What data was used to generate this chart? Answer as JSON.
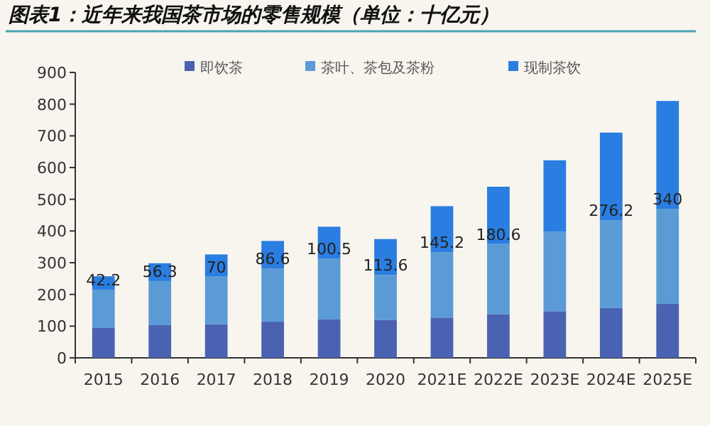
{
  "chart_data": {
    "type": "bar",
    "stacked": true,
    "title": "图表1：近年来我国茶市场的零售规模（单位：十亿元）",
    "categories": [
      "2015",
      "2016",
      "2017",
      "2018",
      "2019",
      "2020",
      "2021E",
      "2022E",
      "2023E",
      "2024E",
      "2025E"
    ],
    "ylim": [
      0,
      900
    ],
    "yticks": [
      0,
      100,
      200,
      300,
      400,
      500,
      600,
      700,
      800,
      900
    ],
    "grid": false,
    "legend": "top",
    "series": [
      {
        "name": "即饮茶",
        "color": "#4a62b2",
        "values": [
          94,
          103,
          106,
          114,
          121,
          120,
          127,
          138,
          147,
          157,
          170
        ]
      },
      {
        "name": "茶叶、茶包及茶粉",
        "color": "#5b9bd5",
        "values": [
          121,
          139,
          150,
          168,
          192,
          141,
          206,
          221,
          251,
          277,
          300
        ]
      },
      {
        "name": "现制茶饮",
        "color": "#2a7de1",
        "values": [
          42.2,
          56.3,
          70,
          86.6,
          100.5,
          113.6,
          145.2,
          180.6,
          225,
          276.2,
          340
        ],
        "value_labels": [
          "42.2",
          "56.3",
          "70",
          "86.6",
          "100.5",
          "113.6",
          "145.2",
          "180.6",
          null,
          "276.2",
          "340"
        ]
      }
    ]
  }
}
